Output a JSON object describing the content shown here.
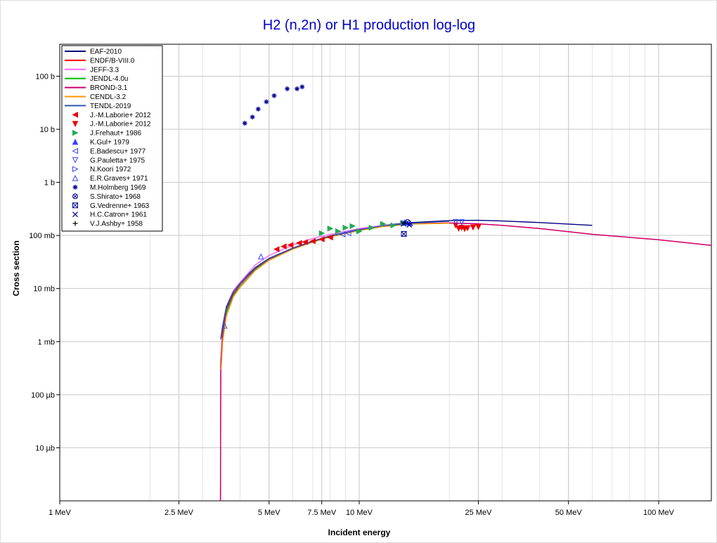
{
  "chart_data": {
    "type": "line",
    "title": "H2 (n,2n) or H1 production log-log",
    "xlabel": "Incident energy",
    "ylabel": "Cross section",
    "x_scale": "log",
    "y_scale": "log",
    "x_unit": "MeV",
    "y_unit": "b",
    "xlim": [
      1,
      150
    ],
    "ylim": [
      1e-06,
      400
    ],
    "grid": true,
    "legend_position": "top-left",
    "x_ticks": [
      {
        "value": 1,
        "label": "1 MeV"
      },
      {
        "value": 2.5,
        "label": "2.5 MeV"
      },
      {
        "value": 5,
        "label": "5 MeV"
      },
      {
        "value": 7.5,
        "label": "7.5 MeV"
      },
      {
        "value": 10,
        "label": "10 MeV"
      },
      {
        "value": 25,
        "label": "25 MeV"
      },
      {
        "value": 50,
        "label": "50 MeV"
      },
      {
        "value": 100,
        "label": "100 MeV"
      }
    ],
    "y_ticks": [
      {
        "value": 100,
        "label": "100 b"
      },
      {
        "value": 10,
        "label": "10 b"
      },
      {
        "value": 1,
        "label": "1 b"
      },
      {
        "value": 0.1,
        "label": "100 mb"
      },
      {
        "value": 0.01,
        "label": "10 mb"
      },
      {
        "value": 0.001,
        "label": "1 mb"
      },
      {
        "value": 0.0001,
        "label": "100 µb"
      },
      {
        "value": 1e-05,
        "label": "10 µb"
      }
    ],
    "series": [
      {
        "name": "EAF-2010",
        "kind": "line",
        "color": "#000080",
        "x": [
          3.45,
          3.5,
          3.6,
          3.8,
          4.0,
          4.5,
          5.0,
          6.0,
          7.0,
          8.0,
          10.0,
          12.0,
          15.0,
          20.0,
          25.0,
          30.0,
          40.0,
          60.0
        ],
        "y": [
          0.00115,
          0.002,
          0.0045,
          0.009,
          0.013,
          0.025,
          0.037,
          0.058,
          0.078,
          0.098,
          0.13,
          0.155,
          0.175,
          0.19,
          0.193,
          0.187,
          0.175,
          0.155
        ]
      },
      {
        "name": "ENDF/B-VIII.0",
        "kind": "line",
        "color": "#ff0000",
        "x": [
          3.44,
          3.45,
          3.5,
          3.6,
          3.8,
          4.0,
          4.5,
          5.0,
          6.0,
          7.0,
          8.0,
          10.0,
          12.0,
          15.0,
          20.0,
          25.0,
          30.0,
          40.0,
          50.0,
          60.0,
          80.0,
          100.0,
          150.0
        ],
        "y": [
          1e-06,
          0.0004,
          0.0015,
          0.004,
          0.008,
          0.012,
          0.024,
          0.036,
          0.057,
          0.076,
          0.095,
          0.125,
          0.148,
          0.165,
          0.172,
          0.165,
          0.155,
          0.135,
          0.118,
          0.105,
          0.092,
          0.083,
          0.065
        ]
      },
      {
        "name": "JEFF-3.3",
        "kind": "line",
        "color": "#ff66ff",
        "x": [
          3.46,
          3.5,
          3.6,
          3.8,
          4.0,
          4.5,
          5.0,
          6.0,
          7.0,
          8.0,
          10.0,
          12.0,
          15.0,
          20.0,
          25.0
        ],
        "y": [
          0.0005,
          0.0015,
          0.004,
          0.009,
          0.013,
          0.028,
          0.042,
          0.066,
          0.088,
          0.105,
          0.135,
          0.155,
          0.168,
          0.172,
          0.168
        ]
      },
      {
        "name": "JENDL-4.0u",
        "kind": "line",
        "color": "#00bb00",
        "x": [
          3.46,
          3.5,
          3.6,
          3.8,
          4.0,
          4.3,
          4.5,
          5.0,
          6.0,
          7.0,
          8.0,
          10.0,
          12.0,
          15.0,
          20.0
        ],
        "y": [
          0.0004,
          0.0012,
          0.0035,
          0.0075,
          0.011,
          0.017,
          0.023,
          0.034,
          0.056,
          0.075,
          0.094,
          0.124,
          0.148,
          0.165,
          0.17
        ]
      },
      {
        "name": "BROND-3.1",
        "kind": "line",
        "color": "#cc0077",
        "x": [
          3.44,
          3.45,
          3.5,
          3.6,
          3.8,
          4.0,
          4.5,
          5.0,
          6.0,
          7.0,
          8.0,
          10.0,
          12.0,
          15.0,
          20.0,
          25.0,
          30.0,
          40.0,
          50.0,
          60.0,
          80.0,
          100.0,
          150.0
        ],
        "y": [
          1e-06,
          0.0004,
          0.0015,
          0.004,
          0.008,
          0.012,
          0.024,
          0.036,
          0.057,
          0.076,
          0.095,
          0.125,
          0.148,
          0.165,
          0.172,
          0.165,
          0.155,
          0.135,
          0.118,
          0.105,
          0.092,
          0.083,
          0.065
        ]
      },
      {
        "name": "CENDL-3.2",
        "kind": "line",
        "color": "#ff9900",
        "x": [
          3.46,
          3.5,
          3.6,
          3.8,
          4.0,
          4.5,
          5.0,
          6.0,
          7.0,
          8.0,
          10.0,
          12.0,
          15.0,
          20.0
        ],
        "y": [
          0.0003,
          0.001,
          0.003,
          0.007,
          0.0105,
          0.022,
          0.034,
          0.055,
          0.075,
          0.094,
          0.124,
          0.147,
          0.164,
          0.17
        ]
      },
      {
        "name": "TENDL-2019",
        "kind": "line",
        "color": "#3355aa",
        "x": [
          3.45,
          3.5,
          3.6,
          3.8,
          4.0,
          4.5,
          5.0,
          6.0,
          7.0,
          8.0,
          10.0,
          12.0,
          15.0,
          20.0
        ],
        "y": [
          0.0011,
          0.0019,
          0.0043,
          0.0088,
          0.0125,
          0.0245,
          0.0365,
          0.057,
          0.077,
          0.097,
          0.128,
          0.152,
          0.17,
          0.185
        ]
      },
      {
        "name": "J.-M.Laborie+ 2012",
        "kind": "marker",
        "marker": "triangle-left",
        "color": "#ee0000",
        "x": [
          5.3,
          5.6,
          5.9,
          6.3,
          6.6,
          7.0,
          7.5,
          8.0
        ],
        "y": [
          0.055,
          0.062,
          0.066,
          0.072,
          0.075,
          0.078,
          0.085,
          0.092
        ]
      },
      {
        "name": "J.-M.Laborie+ 2012",
        "kind": "marker",
        "marker": "triangle-down",
        "color": "#ee0000",
        "x": [
          21.0,
          21.5,
          22.0,
          22.5,
          23.0,
          24.0,
          25.0
        ],
        "y": [
          0.155,
          0.135,
          0.14,
          0.133,
          0.138,
          0.142,
          0.145
        ]
      },
      {
        "name": "J.Frehaut+ 1986",
        "kind": "marker",
        "marker": "triangle-right",
        "color": "#22aa55",
        "x": [
          7.5,
          8.0,
          8.5,
          9.0,
          9.5,
          10.0,
          11.0,
          12.0,
          13.0,
          14.0
        ],
        "y": [
          0.11,
          0.135,
          0.12,
          0.14,
          0.15,
          0.12,
          0.14,
          0.165,
          0.155,
          0.17
        ]
      },
      {
        "name": "K.Gul+ 1979",
        "kind": "marker",
        "marker": "triangle-up",
        "color": "#3344ff",
        "x": [
          14.2,
          14.8
        ],
        "y": [
          0.175,
          0.17
        ]
      },
      {
        "name": "E.Badescu+ 1977",
        "kind": "marker",
        "marker": "open-triangle-left",
        "color": "#3344ff",
        "x": [
          8.8,
          9.2
        ],
        "y": [
          0.105,
          0.11
        ]
      },
      {
        "name": "G.Pauletta+ 1975",
        "kind": "marker",
        "marker": "open-triangle-down",
        "color": "#3344ff",
        "x": [
          21.0,
          22.0
        ],
        "y": [
          0.18,
          0.178
        ]
      },
      {
        "name": "N.Koori 1972",
        "kind": "marker",
        "marker": "open-triangle-right",
        "color": "#3344ff",
        "x": [
          14.1
        ],
        "y": [
          0.172
        ]
      },
      {
        "name": "E.R.Graves+ 1971",
        "kind": "marker",
        "marker": "open-triangle-up",
        "color": "#3344ff",
        "x": [
          3.55,
          4.7
        ],
        "y": [
          0.002,
          0.04
        ]
      },
      {
        "name": "M.Holmberg 1969",
        "kind": "marker",
        "marker": "asterisk",
        "color": "#000099",
        "x": [
          4.15,
          4.4,
          4.6,
          4.9,
          5.2,
          5.75,
          6.2,
          6.45
        ],
        "y": [
          13,
          17,
          24,
          33,
          43,
          58,
          58,
          63
        ]
      },
      {
        "name": "S.Shirato+ 1968",
        "kind": "marker",
        "marker": "circle-x",
        "color": "#000099",
        "x": [
          14.5
        ],
        "y": [
          0.18
        ]
      },
      {
        "name": "G.Vedrenne+ 1963",
        "kind": "marker",
        "marker": "square-x",
        "color": "#000099",
        "x": [
          14.1
        ],
        "y": [
          0.107
        ]
      },
      {
        "name": "H.C.Catron+ 1961",
        "kind": "marker",
        "marker": "x",
        "color": "#000099",
        "x": [
          14.1,
          14.7
        ],
        "y": [
          0.165,
          0.158
        ]
      },
      {
        "name": "V.J.Ashby+ 1958",
        "kind": "marker",
        "marker": "plus",
        "color": "#000000",
        "x": [
          14.1
        ],
        "y": [
          0.17
        ]
      }
    ]
  }
}
